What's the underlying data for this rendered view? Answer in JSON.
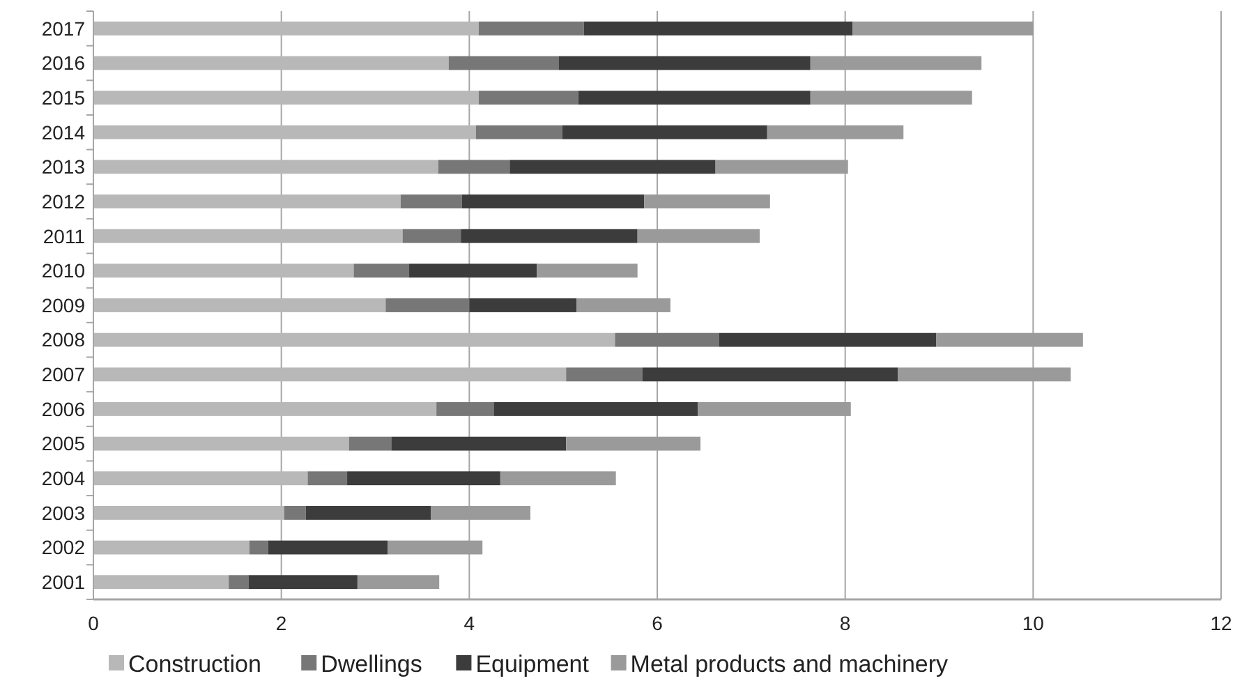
{
  "chart_data": {
    "type": "bar",
    "orientation": "horizontal",
    "stacked": true,
    "categories": [
      "2017",
      "2016",
      "2015",
      "2014",
      "2013",
      "2012",
      "2011",
      "2010",
      "2009",
      "2008",
      "2007",
      "2006",
      "2005",
      "2004",
      "2003",
      "2002",
      "2001"
    ],
    "series": [
      {
        "name": "Construction",
        "color": "#b8b8b8",
        "values": [
          4.1,
          3.78,
          4.1,
          4.07,
          3.67,
          3.27,
          3.29,
          2.77,
          3.11,
          5.55,
          5.03,
          3.65,
          2.72,
          2.28,
          2.03,
          1.66,
          1.44
        ]
      },
      {
        "name": "Dwellings",
        "color": "#777777",
        "values": [
          1.12,
          1.17,
          1.06,
          0.92,
          0.76,
          0.65,
          0.62,
          0.59,
          0.89,
          1.11,
          0.81,
          0.61,
          0.45,
          0.42,
          0.23,
          0.2,
          0.21
        ]
      },
      {
        "name": "Equipment",
        "color": "#3c3c3c",
        "values": [
          2.86,
          2.68,
          2.47,
          2.18,
          2.19,
          1.94,
          1.88,
          1.36,
          1.14,
          2.31,
          2.72,
          2.17,
          1.86,
          1.63,
          1.33,
          1.27,
          1.16
        ]
      },
      {
        "name": "Metal products and machinery",
        "color": "#9a9a9a",
        "values": [
          1.92,
          1.82,
          1.72,
          1.45,
          1.41,
          1.34,
          1.3,
          1.07,
          1.0,
          1.56,
          1.84,
          1.63,
          1.43,
          1.23,
          1.06,
          1.01,
          0.87
        ]
      }
    ],
    "xlim": [
      0,
      12
    ],
    "xticks": [
      0,
      2,
      4,
      6,
      8,
      10,
      12
    ],
    "grid": "x",
    "legend": "bottom"
  }
}
